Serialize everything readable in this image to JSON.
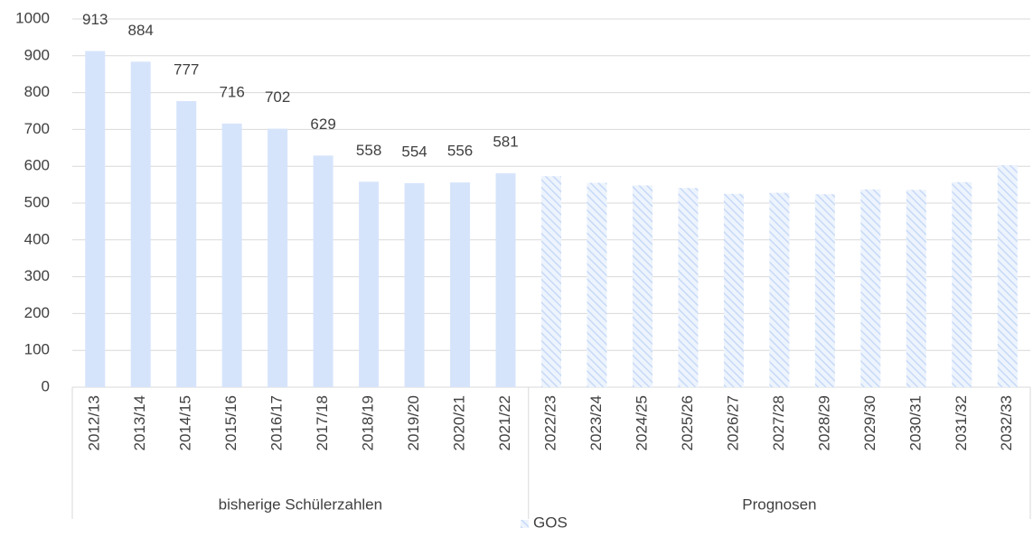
{
  "chart_data": {
    "type": "bar",
    "categories": [
      "2012/13",
      "2013/14",
      "2014/15",
      "2015/16",
      "2016/17",
      "2017/18",
      "2018/19",
      "2019/20",
      "2020/21",
      "2021/22",
      "2022/23",
      "2023/24",
      "2024/25",
      "2025/26",
      "2026/27",
      "2027/28",
      "2028/29",
      "2029/30",
      "2030/31",
      "2031/32",
      "2032/33"
    ],
    "series": [
      {
        "name": "GOS",
        "color": "#d6e4fb",
        "values": [
          913,
          884,
          777,
          716,
          702,
          629,
          558,
          554,
          556,
          581,
          573,
          555,
          548,
          541,
          525,
          528,
          524,
          537,
          536,
          557,
          603
        ],
        "value_labels": [
          "913",
          "884",
          "777",
          "716",
          "702",
          "629",
          "558",
          "554",
          "556",
          "581",
          null,
          null,
          null,
          null,
          null,
          null,
          null,
          null,
          null,
          null,
          null
        ]
      }
    ],
    "groups": [
      {
        "name": "bisherige Schülerzahlen",
        "count": 10,
        "pattern": "solid"
      },
      {
        "name": "Prognosen",
        "count": 11,
        "pattern": "hatched"
      }
    ],
    "ylim": [
      0,
      1000
    ],
    "yticks": [
      0,
      100,
      200,
      300,
      400,
      500,
      600,
      700,
      800,
      900,
      1000
    ],
    "grid": true,
    "legend": "bottom"
  }
}
